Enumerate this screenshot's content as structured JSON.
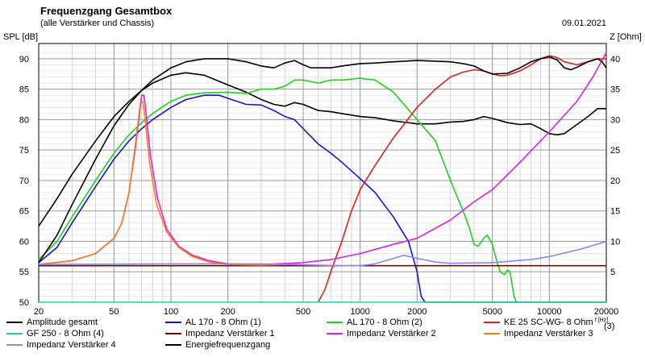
{
  "header": {
    "title": "Frequenzgang Gesamtbox",
    "subtitle": "(alle Verstärker und Chassis)",
    "date": "09.01.2021"
  },
  "chart_data": {
    "type": "line",
    "title": "Frequenzgang Gesamtbox",
    "subtitle": "(alle Verstärker und Chassis)",
    "ylabel_left": "SPL [dB]",
    "ylabel_right": "Z [Ohm]",
    "xlabel": "",
    "x_scale": "log",
    "xlim": [
      20,
      20000
    ],
    "ylim_left": [
      50,
      92.5
    ],
    "ylim_right": [
      0,
      42.5
    ],
    "x_ticks": [
      20,
      50,
      100,
      200,
      500,
      1000,
      2000,
      5000,
      10000,
      20000
    ],
    "x_tick_labels": [
      "20",
      "50",
      "100",
      "200",
      "500",
      "1000",
      "2000",
      "5000",
      "10000",
      "20000"
    ],
    "y_left_ticks": [
      50,
      55,
      60,
      65,
      70,
      75,
      80,
      85,
      90
    ],
    "y_left_tick_labels": [
      "50",
      "55",
      "60",
      "65",
      "70",
      "75",
      "80",
      "85",
      "90"
    ],
    "y_right_ticks": [
      5,
      10,
      15,
      20,
      25,
      30,
      35,
      40
    ],
    "y_right_tick_labels": [
      "5",
      "10",
      "15",
      "20",
      "25",
      "30",
      "35",
      "40"
    ],
    "grid": true,
    "legend_position": "bottom",
    "series": [
      {
        "name": "Amplitude gesamt",
        "axis": "left",
        "color": "#000000",
        "points": [
          [
            20,
            62.5
          ],
          [
            25,
            67
          ],
          [
            30,
            71
          ],
          [
            40,
            76.5
          ],
          [
            50,
            80.5
          ],
          [
            60,
            83
          ],
          [
            70,
            84.8
          ],
          [
            80,
            86
          ],
          [
            100,
            87.3
          ],
          [
            120,
            87.7
          ],
          [
            150,
            87.3
          ],
          [
            200,
            85.7
          ],
          [
            250,
            84.5
          ],
          [
            300,
            83.3
          ],
          [
            350,
            82.5
          ],
          [
            400,
            82.2
          ],
          [
            450,
            82.8
          ],
          [
            500,
            82.5
          ],
          [
            600,
            81.5
          ],
          [
            700,
            81.3
          ],
          [
            800,
            81
          ],
          [
            1000,
            80.5
          ],
          [
            1200,
            80.3
          ],
          [
            1500,
            79.8
          ],
          [
            2000,
            79.3
          ],
          [
            2500,
            79.3
          ],
          [
            3000,
            79.6
          ],
          [
            3500,
            79.7
          ],
          [
            4000,
            80
          ],
          [
            4500,
            80.5
          ],
          [
            5000,
            80.2
          ],
          [
            6000,
            79.5
          ],
          [
            7000,
            79.2
          ],
          [
            8000,
            79.3
          ],
          [
            9000,
            78.5
          ],
          [
            10000,
            77.7
          ],
          [
            11000,
            77.5
          ],
          [
            12000,
            77.7
          ],
          [
            14000,
            79.2
          ],
          [
            16000,
            80.5
          ],
          [
            18000,
            81.8
          ],
          [
            20000,
            81.8
          ]
        ]
      },
      {
        "name": "AL 170 - 8 Ohm (1)",
        "axis": "left",
        "color": "#1515d0",
        "points": [
          [
            20,
            56.5
          ],
          [
            25,
            59
          ],
          [
            30,
            63
          ],
          [
            40,
            69
          ],
          [
            50,
            73.5
          ],
          [
            60,
            76.5
          ],
          [
            70,
            78.5
          ],
          [
            80,
            80
          ],
          [
            100,
            82
          ],
          [
            120,
            83.3
          ],
          [
            150,
            84
          ],
          [
            180,
            84
          ],
          [
            200,
            83.5
          ],
          [
            250,
            82.5
          ],
          [
            300,
            82.4
          ],
          [
            350,
            81.5
          ],
          [
            400,
            80.5
          ],
          [
            450,
            80
          ],
          [
            500,
            78.5
          ],
          [
            600,
            76
          ],
          [
            700,
            74.5
          ],
          [
            800,
            73
          ],
          [
            1000,
            70.3
          ],
          [
            1200,
            68
          ],
          [
            1500,
            64
          ],
          [
            1800,
            60
          ],
          [
            2000,
            55
          ],
          [
            2100,
            51
          ],
          [
            2200,
            50
          ],
          [
            20000,
            50
          ]
        ]
      },
      {
        "name": "AL 170 - 8 Ohm (2)",
        "axis": "left",
        "color": "#20d020",
        "points": [
          [
            20,
            57
          ],
          [
            25,
            60
          ],
          [
            30,
            64
          ],
          [
            40,
            70
          ],
          [
            50,
            74.5
          ],
          [
            60,
            77.5
          ],
          [
            70,
            79.5
          ],
          [
            80,
            81
          ],
          [
            100,
            83
          ],
          [
            120,
            84
          ],
          [
            150,
            84.4
          ],
          [
            200,
            84.5
          ],
          [
            250,
            84.3
          ],
          [
            300,
            85
          ],
          [
            350,
            85
          ],
          [
            400,
            85.5
          ],
          [
            450,
            86.5
          ],
          [
            500,
            86.5
          ],
          [
            600,
            86
          ],
          [
            700,
            86.5
          ],
          [
            800,
            86.5
          ],
          [
            1000,
            86.8
          ],
          [
            1200,
            86.5
          ],
          [
            1500,
            84.5
          ],
          [
            2000,
            80
          ],
          [
            2500,
            76.5
          ],
          [
            3000,
            70
          ],
          [
            3500,
            65
          ],
          [
            3800,
            62
          ],
          [
            4000,
            59.5
          ],
          [
            4200,
            59.2
          ],
          [
            4500,
            60.5
          ],
          [
            4700,
            61
          ],
          [
            5000,
            59.5
          ],
          [
            5300,
            56.5
          ],
          [
            5500,
            55
          ],
          [
            5800,
            54.5
          ],
          [
            6000,
            55.3
          ],
          [
            6200,
            55
          ],
          [
            6500,
            51
          ],
          [
            6700,
            50
          ]
        ]
      },
      {
        "name": "KE 25 SC-WG- 8 Ohm",
        "axis": "left",
        "color": "#e02020",
        "points": [
          [
            600,
            50
          ],
          [
            650,
            52
          ],
          [
            700,
            55
          ],
          [
            800,
            60
          ],
          [
            900,
            65
          ],
          [
            1000,
            68.5
          ],
          [
            1200,
            72.5
          ],
          [
            1500,
            77
          ],
          [
            2000,
            82
          ],
          [
            2500,
            85
          ],
          [
            3000,
            87
          ],
          [
            3500,
            87.8
          ],
          [
            4000,
            88.2
          ],
          [
            4500,
            88
          ],
          [
            5000,
            87.5
          ],
          [
            5500,
            87.2
          ],
          [
            6000,
            87.3
          ],
          [
            7000,
            88
          ],
          [
            8000,
            89
          ],
          [
            9000,
            90
          ],
          [
            10000,
            90.5
          ],
          [
            11000,
            90.2
          ],
          [
            12000,
            89.5
          ],
          [
            14000,
            89
          ],
          [
            16000,
            89.5
          ],
          [
            18000,
            90
          ],
          [
            20000,
            90
          ]
        ]
      },
      {
        "name": "GF 250 - 8 Ohm (4)",
        "axis": "left",
        "color": "#20d0b0",
        "points": [
          [
            20,
            50
          ],
          [
            20000,
            50
          ]
        ]
      },
      {
        "name": "Impedanz Verstärker 1",
        "axis": "right",
        "color": "#800000",
        "points": [
          [
            20,
            6
          ],
          [
            20000,
            6
          ]
        ]
      },
      {
        "name": "Impedanz Verstärker 2",
        "axis": "right",
        "color": "#e020e0",
        "points": [
          [
            20,
            6.2
          ],
          [
            30,
            6.8
          ],
          [
            40,
            8
          ],
          [
            50,
            10.5
          ],
          [
            55,
            13
          ],
          [
            60,
            18
          ],
          [
            65,
            25.5
          ],
          [
            68,
            30.5
          ],
          [
            70,
            34
          ],
          [
            72,
            34
          ],
          [
            74,
            31
          ],
          [
            78,
            24
          ],
          [
            85,
            17
          ],
          [
            95,
            12
          ],
          [
            110,
            9.2
          ],
          [
            130,
            7.7
          ],
          [
            160,
            6.8
          ],
          [
            200,
            6.3
          ],
          [
            300,
            6.2
          ],
          [
            500,
            6.5
          ],
          [
            700,
            7
          ],
          [
            1000,
            8
          ],
          [
            1500,
            9.5
          ],
          [
            2000,
            10.5
          ],
          [
            3000,
            13.5
          ],
          [
            4000,
            16.5
          ],
          [
            5000,
            18.5
          ],
          [
            7000,
            23
          ],
          [
            10000,
            28
          ],
          [
            14000,
            33
          ],
          [
            17000,
            37
          ],
          [
            20000,
            41
          ]
        ]
      },
      {
        "name": "Impedanz Verstärker 3",
        "axis": "right",
        "color": "#f08020",
        "points": [
          [
            20,
            6.2
          ],
          [
            30,
            6.8
          ],
          [
            40,
            8
          ],
          [
            50,
            10.5
          ],
          [
            55,
            13
          ],
          [
            60,
            18
          ],
          [
            64,
            24.5
          ],
          [
            67,
            29.5
          ],
          [
            69,
            32.8
          ],
          [
            71,
            33
          ],
          [
            73,
            30
          ],
          [
            77,
            23
          ],
          [
            84,
            16
          ],
          [
            95,
            11.5
          ],
          [
            110,
            9
          ],
          [
            130,
            7.5
          ],
          [
            160,
            6.6
          ],
          [
            200,
            6.2
          ],
          [
            300,
            6.1
          ],
          [
            400,
            6.2
          ]
        ]
      },
      {
        "name": "Impedanz Verstärker 4",
        "axis": "right",
        "color": "#8888ee",
        "points": [
          [
            20,
            6.2
          ],
          [
            100,
            6.3
          ],
          [
            300,
            6.3
          ],
          [
            800,
            6
          ],
          [
            1000,
            6
          ],
          [
            1200,
            6.3
          ],
          [
            1500,
            7.2
          ],
          [
            1700,
            7.7
          ],
          [
            2000,
            7.2
          ],
          [
            2500,
            6.6
          ],
          [
            3000,
            6.4
          ],
          [
            5000,
            6.5
          ],
          [
            8000,
            7
          ],
          [
            10000,
            7.5
          ],
          [
            15000,
            8.8
          ],
          [
            20000,
            10
          ]
        ]
      },
      {
        "name": "Energiefrequenzgang",
        "axis": "left",
        "color": "#000000",
        "points": [
          [
            20,
            56.5
          ],
          [
            25,
            61
          ],
          [
            30,
            66
          ],
          [
            40,
            73.5
          ],
          [
            50,
            79
          ],
          [
            60,
            82.5
          ],
          [
            70,
            84.8
          ],
          [
            80,
            86.5
          ],
          [
            100,
            88.5
          ],
          [
            120,
            89.5
          ],
          [
            150,
            90
          ],
          [
            180,
            90
          ],
          [
            200,
            90
          ],
          [
            250,
            89.5
          ],
          [
            300,
            88.8
          ],
          [
            350,
            88.5
          ],
          [
            400,
            89.3
          ],
          [
            450,
            89.7
          ],
          [
            500,
            89
          ],
          [
            550,
            88.5
          ],
          [
            600,
            88.5
          ],
          [
            700,
            88.5
          ],
          [
            800,
            88.8
          ],
          [
            1000,
            89.2
          ],
          [
            1200,
            89.3
          ],
          [
            1500,
            89.5
          ],
          [
            2000,
            89.7
          ],
          [
            2500,
            89.6
          ],
          [
            3000,
            89.5
          ],
          [
            3500,
            89.2
          ],
          [
            4000,
            88.8
          ],
          [
            4500,
            88
          ],
          [
            5000,
            87.5
          ],
          [
            6000,
            87.6
          ],
          [
            7000,
            88.5
          ],
          [
            8000,
            89.5
          ],
          [
            9000,
            90
          ],
          [
            10000,
            90.3
          ],
          [
            11000,
            89.8
          ],
          [
            12000,
            88.5
          ],
          [
            13000,
            88.2
          ],
          [
            14000,
            88.6
          ],
          [
            16000,
            89.5
          ],
          [
            18000,
            90
          ],
          [
            19000,
            89.5
          ],
          [
            20000,
            88.5
          ]
        ]
      }
    ]
  },
  "legend": [
    {
      "label": "Amplitude gesamt",
      "color": "#000000"
    },
    {
      "label": "AL 170 - 8 Ohm (1)",
      "color": "#1515d0"
    },
    {
      "label": "AL 170 - 8 Ohm (2)",
      "color": "#20d020"
    },
    {
      "label": "KE 25 SC-WG- 8 Ohm",
      "color": "#e02020"
    },
    {
      "label": "GF 250 - 8 Ohm (4)",
      "color": "#20d0b0"
    },
    {
      "label": "Impedanz Verstärker 1",
      "color": "#800000"
    },
    {
      "label": "Impedanz Verstärker 2",
      "color": "#e020e0"
    },
    {
      "label": "Impedanz Verstärker 3",
      "color": "#f08020"
    },
    {
      "label": "Impedanz Verstärker 4",
      "color": "#8888ee"
    },
    {
      "label": "Energiefrequenzgang",
      "color": "#000000"
    }
  ],
  "legend_extra": {
    "label": "(3)"
  },
  "corner_mark": "f [Hz]"
}
